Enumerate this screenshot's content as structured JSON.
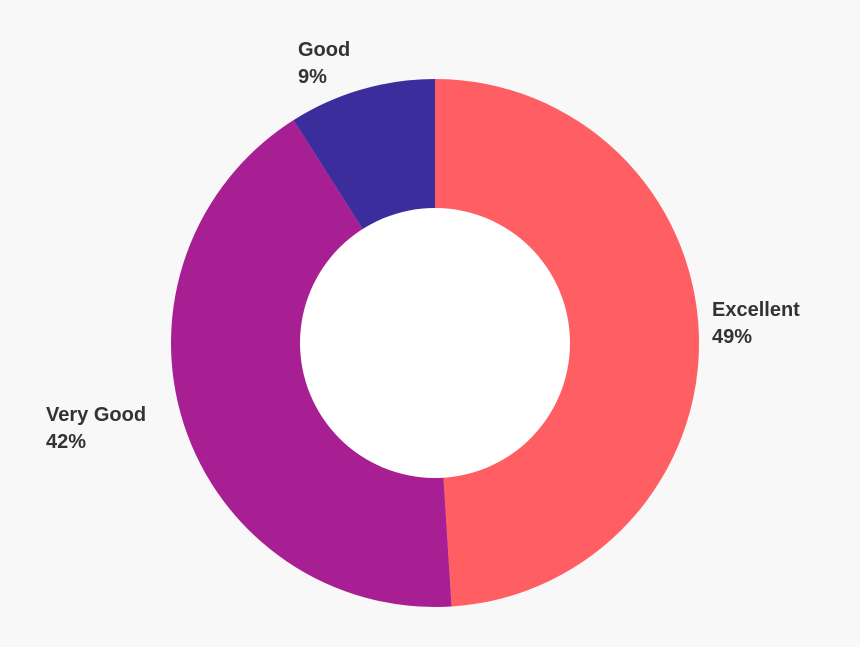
{
  "chart_data": {
    "type": "pie",
    "donut": true,
    "title": "",
    "legend": "none",
    "slices": [
      {
        "label": "Excellent",
        "value": 49,
        "value_label": "49%",
        "color": "#ff5f63"
      },
      {
        "label": "Very Good",
        "value": 42,
        "value_label": "42%",
        "color": "#a71f92"
      },
      {
        "label": "Good",
        "value": 9,
        "value_label": "9%",
        "color": "#3b2e9c"
      }
    ]
  }
}
